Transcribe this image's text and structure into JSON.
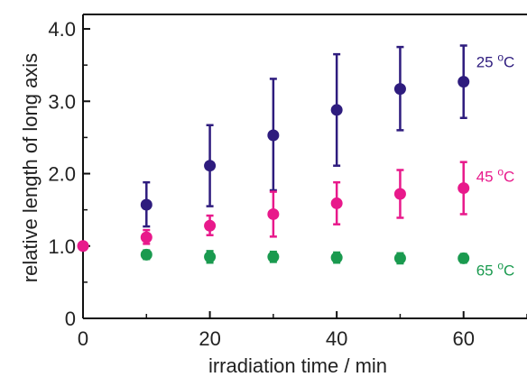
{
  "chart_data": {
    "type": "scatter",
    "title": "",
    "xlabel": "irradiation time / min",
    "ylabel": "relative length of long axis",
    "xlim": [
      0,
      70
    ],
    "ylim": [
      0,
      4.2
    ],
    "x_ticks": [
      0,
      20,
      40,
      60
    ],
    "x_tick_labels": [
      "0",
      "20",
      "40",
      "60"
    ],
    "y_ticks": [
      0,
      1,
      2,
      3,
      4
    ],
    "y_tick_labels": [
      "0",
      "1.0",
      "2.0",
      "3.0",
      "4.0"
    ],
    "grid": false,
    "legend": "inline labels at right",
    "series": [
      {
        "name": "25 °C",
        "label_base": "25 ",
        "label_super": "o",
        "label_unit": "C",
        "color": "#2e1c7e",
        "points": [
          {
            "x": 10,
            "y": 1.57,
            "err_low": 1.27,
            "err_high": 1.88
          },
          {
            "x": 20,
            "y": 2.11,
            "err_low": 1.55,
            "err_high": 2.67
          },
          {
            "x": 30,
            "y": 2.53,
            "err_low": 1.77,
            "err_high": 3.31
          },
          {
            "x": 40,
            "y": 2.88,
            "err_low": 2.11,
            "err_high": 3.65
          },
          {
            "x": 50,
            "y": 3.17,
            "err_low": 2.6,
            "err_high": 3.75
          },
          {
            "x": 60,
            "y": 3.27,
            "err_low": 2.77,
            "err_high": 3.77
          }
        ]
      },
      {
        "name": "45 °C",
        "label_base": "45 ",
        "label_super": "o",
        "label_unit": "C",
        "color": "#e8198b",
        "points": [
          {
            "x": 0,
            "y": 1.0
          },
          {
            "x": 10,
            "y": 1.12,
            "err_low": 1.03,
            "err_high": 1.22
          },
          {
            "x": 20,
            "y": 1.28,
            "err_low": 1.15,
            "err_high": 1.42
          },
          {
            "x": 30,
            "y": 1.44,
            "err_low": 1.13,
            "err_high": 1.75
          },
          {
            "x": 40,
            "y": 1.59,
            "err_low": 1.3,
            "err_high": 1.88
          },
          {
            "x": 50,
            "y": 1.72,
            "err_low": 1.39,
            "err_high": 2.05
          },
          {
            "x": 60,
            "y": 1.8,
            "err_low": 1.44,
            "err_high": 2.16
          }
        ]
      },
      {
        "name": "65 °C",
        "label_base": "65 ",
        "label_super": "o",
        "label_unit": "C",
        "color": "#1a9a4f",
        "points": [
          {
            "x": 10,
            "y": 0.88,
            "err_low": 0.82,
            "err_high": 0.94
          },
          {
            "x": 20,
            "y": 0.85,
            "err_low": 0.77,
            "err_high": 0.93
          },
          {
            "x": 30,
            "y": 0.85,
            "err_low": 0.78,
            "err_high": 0.92
          },
          {
            "x": 40,
            "y": 0.84,
            "err_low": 0.77,
            "err_high": 0.91
          },
          {
            "x": 50,
            "y": 0.83,
            "err_low": 0.76,
            "err_high": 0.9
          },
          {
            "x": 60,
            "y": 0.83,
            "err_low": 0.77,
            "err_high": 0.89
          }
        ]
      }
    ]
  }
}
